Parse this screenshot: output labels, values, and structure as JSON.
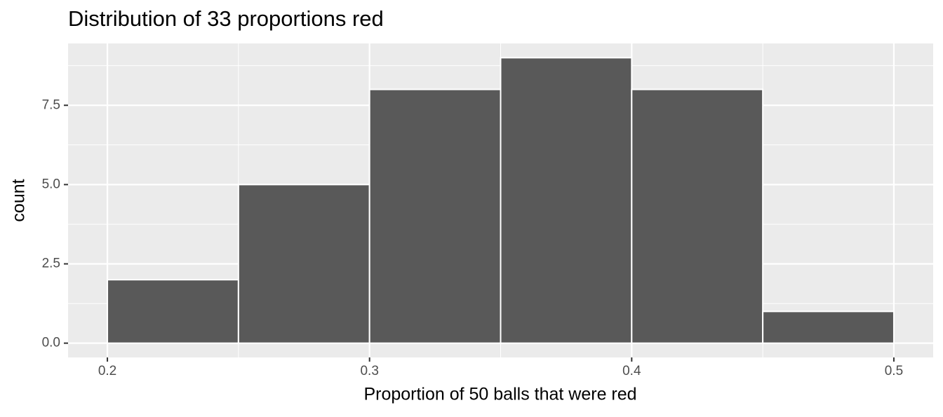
{
  "chart_data": {
    "type": "histogram",
    "title": "Distribution of 33 proportions red",
    "x_label": "Proportion of 50 balls that were red",
    "y_label": "count",
    "bins": [
      0.2,
      0.25,
      0.3,
      0.35,
      0.4,
      0.45,
      0.5
    ],
    "values": [
      2,
      5,
      8,
      9,
      8,
      1
    ],
    "color": "#595959",
    "xlim": [
      0.185,
      0.515
    ],
    "xticks": [
      0.2,
      0.3,
      0.4,
      0.5
    ],
    "ylim": [
      -0.45,
      9.45
    ],
    "yticks": [
      {
        "value": 0,
        "label": "0.0"
      },
      2.5,
      {
        "value": 5,
        "label": "5.0"
      },
      7.5
    ],
    "grid": true
  }
}
